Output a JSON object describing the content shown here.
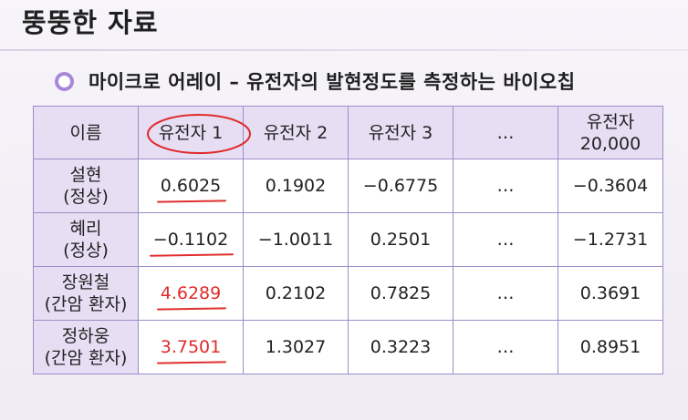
{
  "page": {
    "title": "뚱뚱한 자료",
    "subtitle": "마이크로 어레이 – 유전자의 발현정도를 측정하는 바이오칩"
  },
  "table": {
    "headers": [
      "이름",
      "유전자 1",
      "유전자 2",
      "유전자 3",
      "…",
      "유전자",
      "20,000"
    ],
    "rows": [
      {
        "name1": "설현",
        "name2": "(정상)",
        "g1": "0.6025",
        "g2": "0.1902",
        "g3": "−0.6775",
        "dots": "…",
        "g20000": "−0.3604"
      },
      {
        "name1": "혜리",
        "name2": "(정상)",
        "g1": "−0.1102",
        "g2": "−1.0011",
        "g3": "0.2501",
        "dots": "…",
        "g20000": "−1.2731"
      },
      {
        "name1": "장원철",
        "name2": "(간암 환자)",
        "g1": "4.6289",
        "g2": "0.2102",
        "g3": "0.7825",
        "dots": "…",
        "g20000": "0.3691"
      },
      {
        "name1": "정하웅",
        "name2": "(간암 환자)",
        "g1": "3.7501",
        "g2": "1.3027",
        "g3": "0.3223",
        "dots": "…",
        "g20000": "0.8951"
      }
    ]
  },
  "colors": {
    "accent_purple": "#a987d8",
    "header_fill": "#e7def4",
    "grid_line": "#9c8dc9",
    "annotation_red": "#e02a2a"
  },
  "icons": {
    "bullet": "circle-bullet-icon"
  }
}
